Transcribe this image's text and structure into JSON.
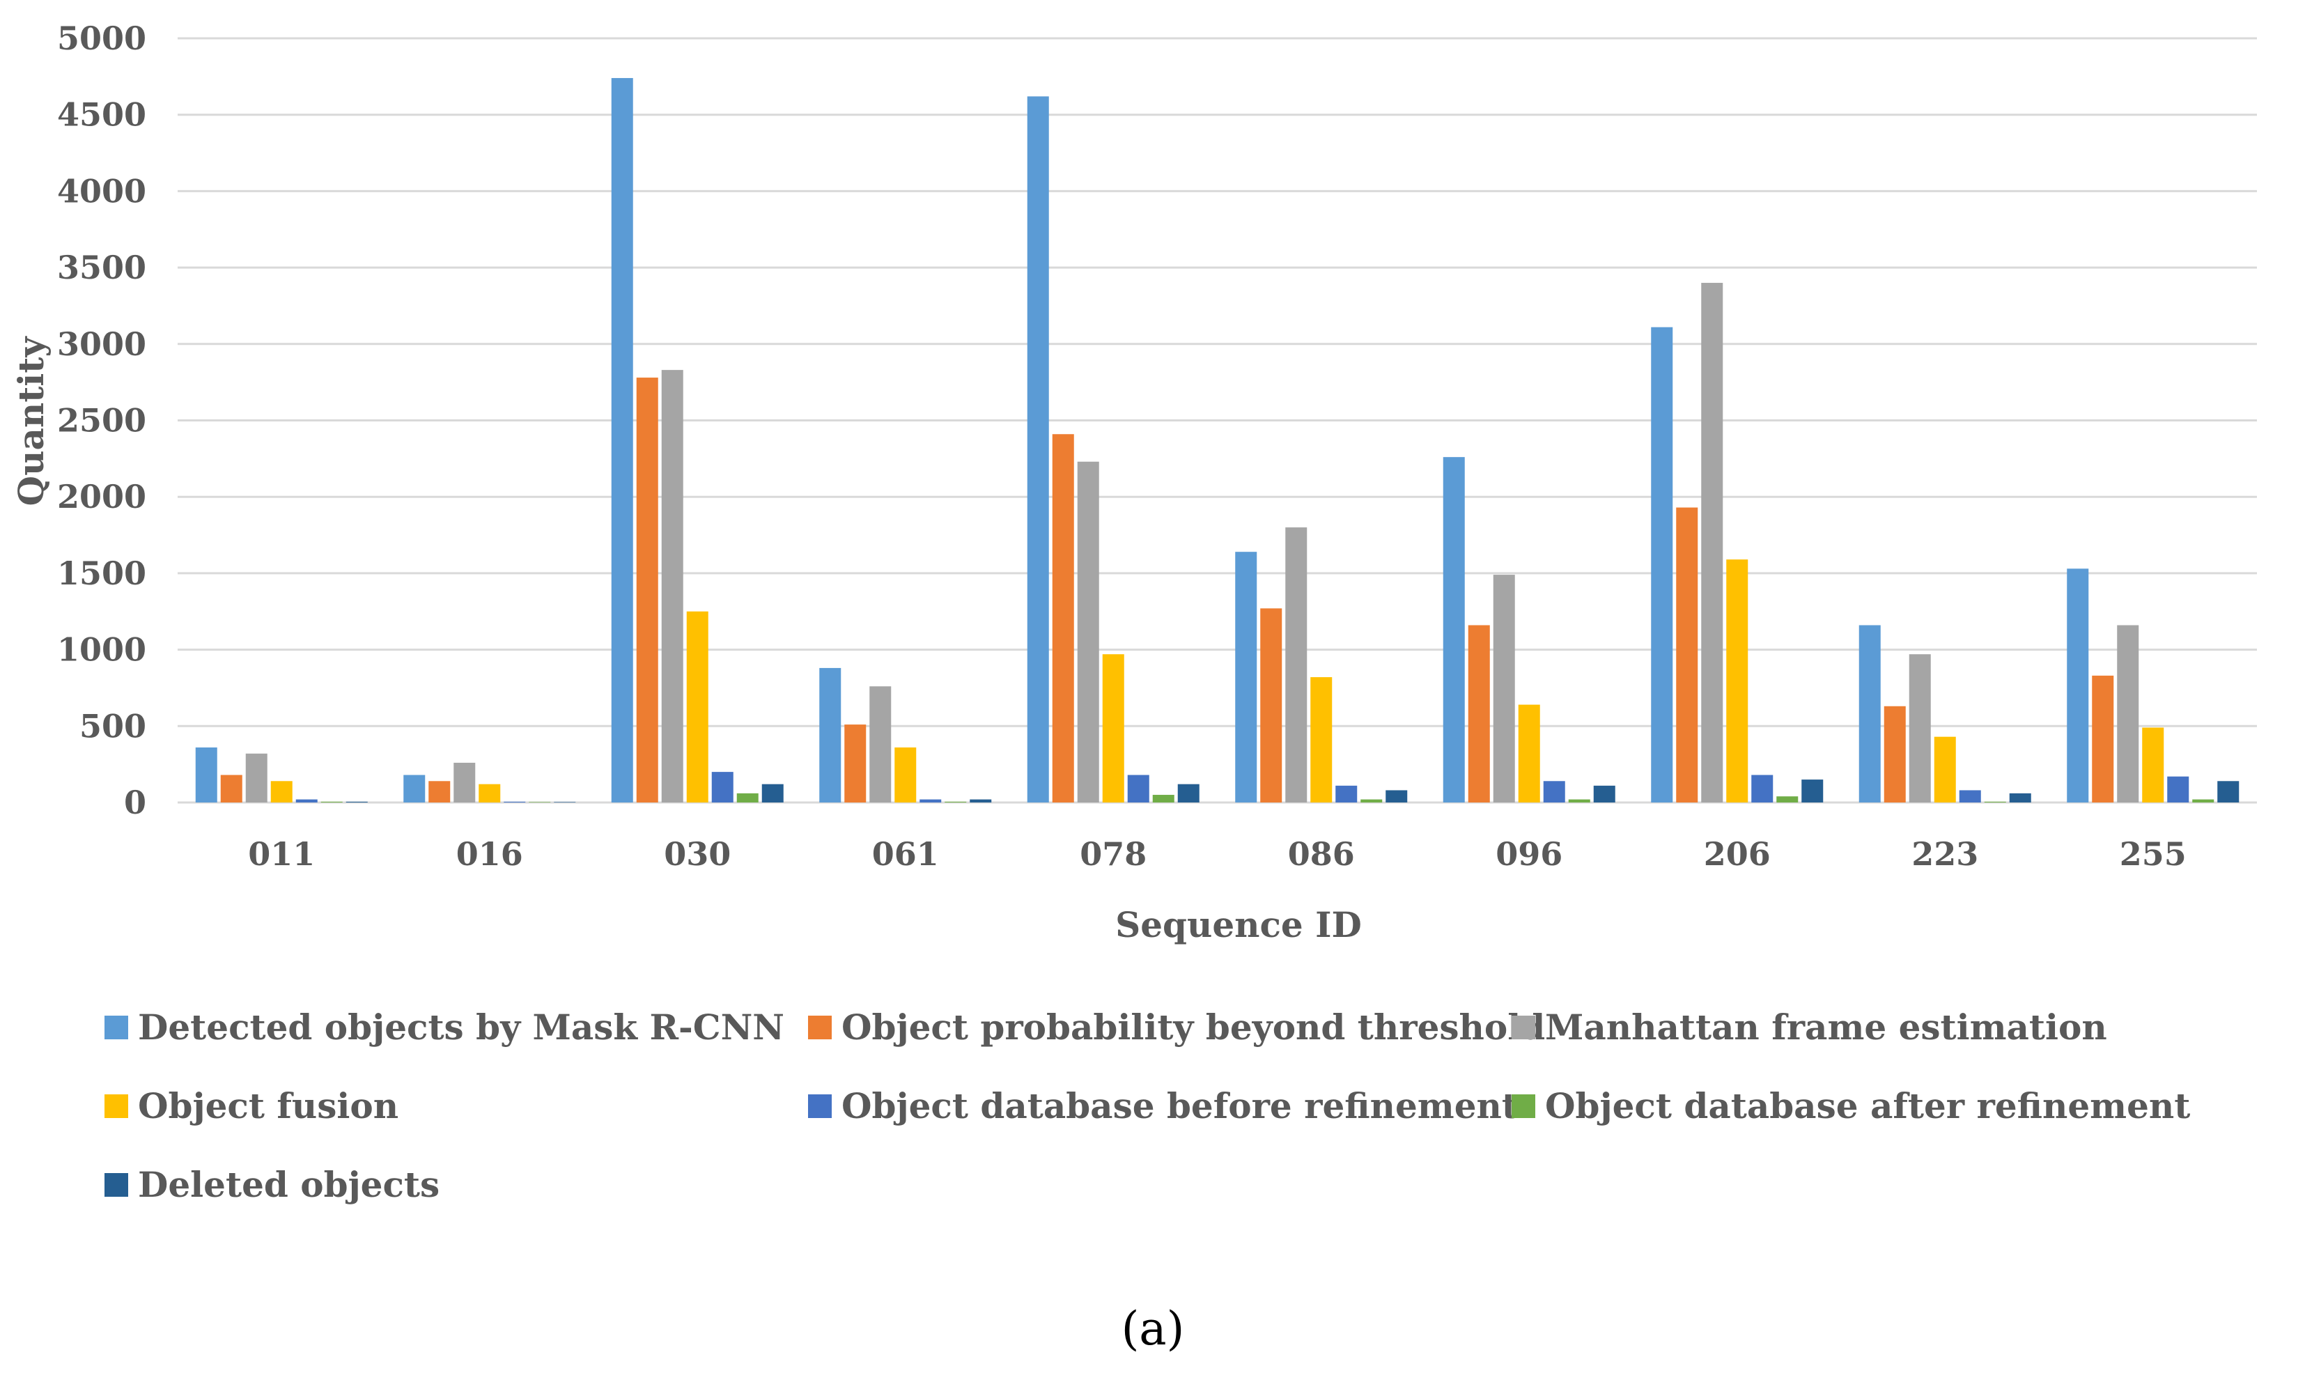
{
  "chart_data": {
    "type": "bar",
    "title": "",
    "xlabel": "Sequence ID",
    "ylabel": "Quantity",
    "ylim": [
      0,
      5000
    ],
    "yticks": [
      0,
      500,
      1000,
      1500,
      2000,
      2500,
      3000,
      3500,
      4000,
      4500,
      5000
    ],
    "grid": true,
    "legend_position": "bottom",
    "categories": [
      "011",
      "016",
      "030",
      "061",
      "078",
      "086",
      "096",
      "206",
      "223",
      "255"
    ],
    "series": [
      {
        "name": "Detected objects by Mask R-CNN",
        "color": "#5b9bd5",
        "values": [
          360,
          180,
          4740,
          880,
          4620,
          1640,
          2260,
          3110,
          1160,
          1530
        ]
      },
      {
        "name": "Object probability beyond threshold",
        "color": "#ed7d31",
        "values": [
          180,
          140,
          2780,
          510,
          2410,
          1270,
          1160,
          1930,
          630,
          830
        ]
      },
      {
        "name": "Manhattan frame estimation",
        "color": "#a5a5a5",
        "values": [
          320,
          260,
          2830,
          760,
          2230,
          1800,
          1490,
          3400,
          970,
          1160
        ]
      },
      {
        "name": "Object fusion",
        "color": "#ffc000",
        "values": [
          140,
          120,
          1250,
          360,
          970,
          820,
          640,
          1590,
          430,
          490
        ]
      },
      {
        "name": "Object database before refinement",
        "color": "#4472c4",
        "values": [
          20,
          5,
          200,
          20,
          180,
          110,
          140,
          180,
          80,
          170
        ]
      },
      {
        "name": "Object database after refinement",
        "color": "#70ad47",
        "values": [
          5,
          3,
          60,
          5,
          50,
          20,
          20,
          40,
          5,
          20
        ]
      },
      {
        "name": "Deleted objects",
        "color": "#255e91",
        "values": [
          5,
          3,
          120,
          20,
          120,
          80,
          110,
          150,
          60,
          140
        ]
      }
    ]
  },
  "caption": "(a)"
}
